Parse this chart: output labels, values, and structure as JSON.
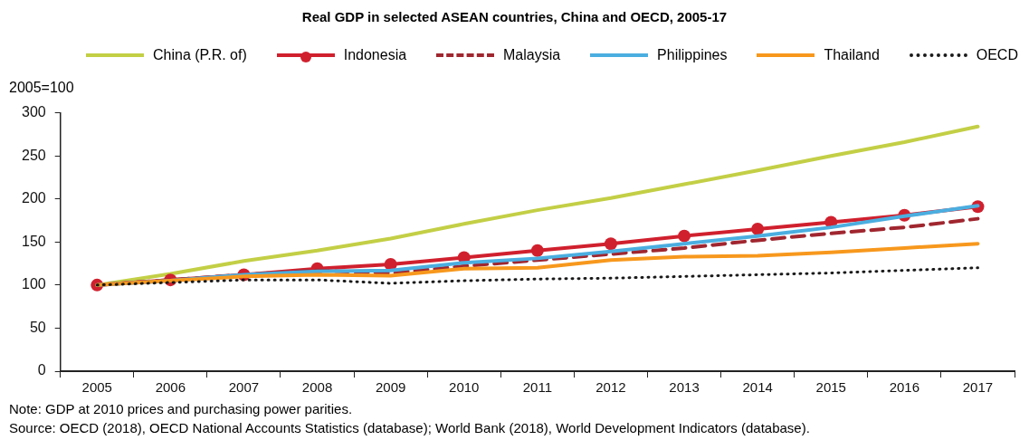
{
  "chart_data": {
    "type": "line",
    "title": "Real GDP in selected ASEAN countries, China and OECD, 2005-17",
    "ylabel": "2005=100",
    "categories": [
      "2005",
      "2006",
      "2007",
      "2008",
      "2009",
      "2010",
      "2011",
      "2012",
      "2013",
      "2014",
      "2015",
      "2016",
      "2017"
    ],
    "series": [
      {
        "name": "China (P.R. of)",
        "color": "#c3cf45",
        "line_style": "solid",
        "marker": "none",
        "values": [
          100,
          113,
          128,
          140,
          154,
          171,
          187,
          201,
          217,
          233,
          250,
          266,
          284
        ]
      },
      {
        "name": "Indonesia",
        "color": "#d0202e",
        "line_style": "solid",
        "marker": "circle",
        "values": [
          100,
          106,
          112,
          119,
          124,
          132,
          140,
          148,
          157,
          165,
          173,
          181,
          191
        ]
      },
      {
        "name": "Malaysia",
        "color": "#a0262f",
        "line_style": "dashed",
        "marker": "none",
        "values": [
          100,
          106,
          112,
          117,
          114,
          122,
          129,
          136,
          143,
          152,
          160,
          167,
          177
        ]
      },
      {
        "name": "Philippines",
        "color": "#4baee0",
        "line_style": "solid",
        "marker": "none",
        "values": [
          100,
          105,
          112,
          116,
          117,
          126,
          131,
          139,
          148,
          157,
          167,
          180,
          192
        ]
      },
      {
        "name": "Thailand",
        "color": "#f7981d",
        "line_style": "solid",
        "marker": "none",
        "values": [
          100,
          105,
          110,
          112,
          111,
          119,
          120,
          129,
          133,
          134,
          138,
          143,
          148
        ]
      },
      {
        "name": "OECD",
        "color": "#1a1a1a",
        "line_style": "dotted",
        "marker": "none",
        "values": [
          100,
          103,
          106,
          106,
          102,
          105,
          107,
          108,
          110,
          112,
          114,
          117,
          120
        ]
      }
    ],
    "ylim": [
      0,
      300
    ],
    "yticks": [
      0,
      50,
      100,
      150,
      200,
      250,
      300
    ],
    "grid": false,
    "legend": "top",
    "annotations": [
      "Note: GDP at 2010 prices and purchasing power parities.",
      "Source: OECD (2018), OECD National Accounts Statistics (database); World Bank (2018), World Development Indicators (database)."
    ]
  }
}
